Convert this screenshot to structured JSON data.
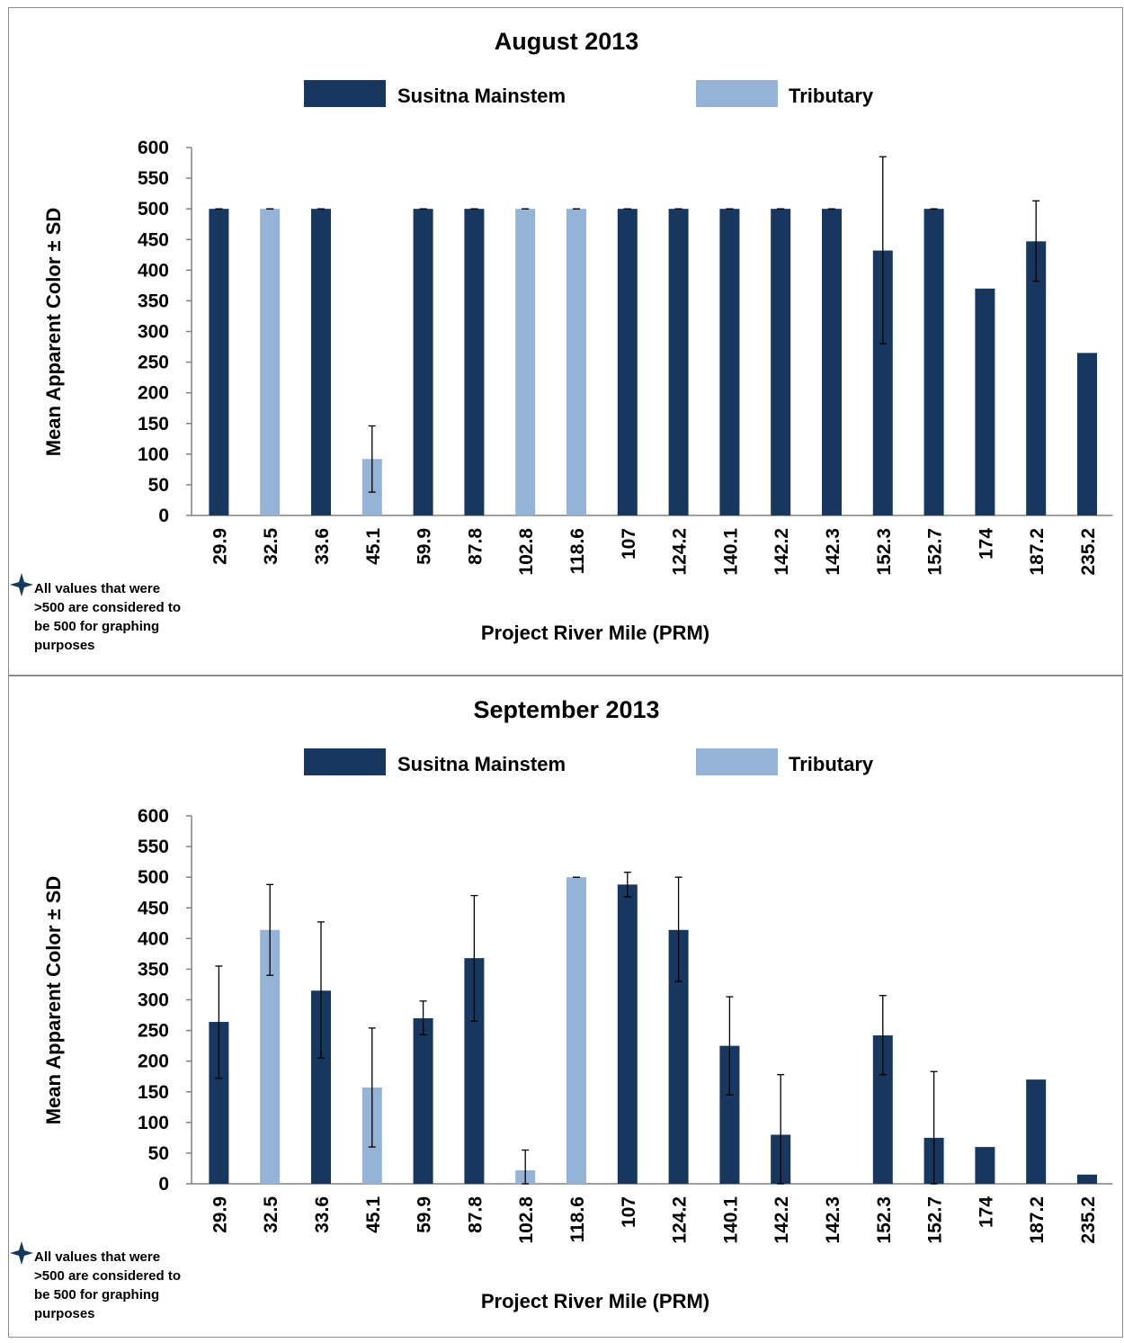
{
  "colors": {
    "mainstem": "#17375e",
    "tributary": "#95b3d7",
    "error_bar": "#000000",
    "axis": "#808080"
  },
  "legend": [
    {
      "name": "Susitna Mainstem",
      "color": "#17375e"
    },
    {
      "name": "Tributary",
      "color": "#95b3d7"
    }
  ],
  "note": {
    "icon": "four-point-star-icon",
    "lines": [
      "All values that were",
      ">500 are considered to",
      "be 500 for graphing",
      "purposes"
    ]
  },
  "chart_data": [
    {
      "type": "bar",
      "title": "August 2013",
      "xlabel": "Project River Mile (PRM)",
      "ylabel": "Mean Apparent Color ± SD",
      "ylim": [
        0,
        600
      ],
      "yticks": [
        0,
        50,
        100,
        150,
        200,
        250,
        300,
        350,
        400,
        450,
        500,
        550,
        600
      ],
      "legend_position": "top",
      "grid": false,
      "categories": [
        "29.9",
        "32.5",
        "33.6",
        "45.1",
        "59.9",
        "87.8",
        "102.8",
        "118.6",
        "107",
        "124.2",
        "140.1",
        "142.2",
        "142.3",
        "152.3",
        "152.7",
        "174",
        "187.2",
        "235.2"
      ],
      "series_type": [
        "Susitna Mainstem",
        "Tributary",
        "Susitna Mainstem",
        "Tributary",
        "Susitna Mainstem",
        "Susitna Mainstem",
        "Tributary",
        "Tributary",
        "Susitna Mainstem",
        "Susitna Mainstem",
        "Susitna Mainstem",
        "Susitna Mainstem",
        "Susitna Mainstem",
        "Susitna Mainstem",
        "Susitna Mainstem",
        "Susitna Mainstem",
        "Susitna Mainstem",
        "Susitna Mainstem"
      ],
      "values": [
        500,
        500,
        500,
        92,
        500,
        500,
        500,
        500,
        500,
        500,
        500,
        500,
        500,
        432,
        500,
        370,
        447,
        265
      ],
      "error_low": [
        500,
        500,
        500,
        38,
        500,
        500,
        500,
        500,
        500,
        500,
        500,
        500,
        500,
        280,
        500,
        null,
        382,
        null
      ],
      "error_high": [
        500,
        500,
        500,
        146,
        500,
        500,
        500,
        500,
        500,
        500,
        500,
        500,
        500,
        585,
        500,
        null,
        513,
        null
      ]
    },
    {
      "type": "bar",
      "title": "September 2013",
      "xlabel": "Project River Mile (PRM)",
      "ylabel": "Mean Apparent Color ± SD",
      "ylim": [
        0,
        600
      ],
      "yticks": [
        0,
        50,
        100,
        150,
        200,
        250,
        300,
        350,
        400,
        450,
        500,
        550,
        600
      ],
      "legend_position": "top",
      "grid": false,
      "categories": [
        "29.9",
        "32.5",
        "33.6",
        "45.1",
        "59.9",
        "87.8",
        "102.8",
        "118.6",
        "107",
        "124.2",
        "140.1",
        "142.2",
        "142.3",
        "152.3",
        "152.7",
        "174",
        "187.2",
        "235.2"
      ],
      "series_type": [
        "Susitna Mainstem",
        "Tributary",
        "Susitna Mainstem",
        "Tributary",
        "Susitna Mainstem",
        "Susitna Mainstem",
        "Tributary",
        "Tributary",
        "Susitna Mainstem",
        "Susitna Mainstem",
        "Susitna Mainstem",
        "Susitna Mainstem",
        "Susitna Mainstem",
        "Susitna Mainstem",
        "Susitna Mainstem",
        "Susitna Mainstem",
        "Susitna Mainstem",
        "Susitna Mainstem"
      ],
      "values": [
        264,
        414,
        315,
        157,
        270,
        368,
        22,
        500,
        488,
        414,
        225,
        80,
        0,
        242,
        75,
        60,
        170,
        15
      ],
      "error_low": [
        172,
        340,
        205,
        60,
        243,
        265,
        0,
        500,
        468,
        330,
        145,
        0,
        null,
        178,
        0,
        null,
        null,
        null
      ],
      "error_high": [
        355,
        488,
        427,
        254,
        298,
        470,
        55,
        500,
        508,
        500,
        305,
        178,
        null,
        307,
        183,
        null,
        null,
        null
      ]
    }
  ]
}
